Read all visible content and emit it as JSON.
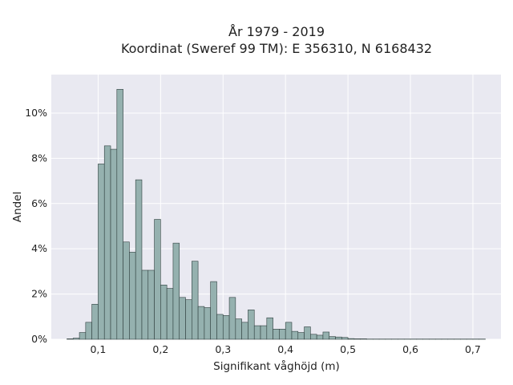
{
  "chart_data": {
    "type": "bar",
    "title_line1": "År 1979 - 2019",
    "title_line2": "Koordinat (Sweref 99 TM): E 356310, N 6168432",
    "xlabel": "Signifikant våghöjd (m)",
    "ylabel": "Andel",
    "xlim": [
      0.025,
      0.745
    ],
    "ylim": [
      0,
      11.7
    ],
    "grid": true,
    "bar_color": "#95b1af",
    "bar_edge_color": "#2f3f3e",
    "plot_background": "#e9e9f1",
    "x_ticks": [
      {
        "value": 0.1,
        "label": "0,1"
      },
      {
        "value": 0.2,
        "label": "0,2"
      },
      {
        "value": 0.3,
        "label": "0,3"
      },
      {
        "value": 0.4,
        "label": "0,4"
      },
      {
        "value": 0.5,
        "label": "0,5"
      },
      {
        "value": 0.6,
        "label": "0,6"
      },
      {
        "value": 0.7,
        "label": "0,7"
      }
    ],
    "y_ticks": [
      {
        "value": 0,
        "label": "0%"
      },
      {
        "value": 2,
        "label": "2%"
      },
      {
        "value": 4,
        "label": "4%"
      },
      {
        "value": 6,
        "label": "6%"
      },
      {
        "value": 8,
        "label": "8%"
      },
      {
        "value": 10,
        "label": "10%"
      }
    ],
    "bin_start": 0.05,
    "bin_width": 0.01,
    "values_percent": [
      0.02,
      0.05,
      0.3,
      0.75,
      1.55,
      7.75,
      8.55,
      8.4,
      11.05,
      4.3,
      3.85,
      7.05,
      3.05,
      3.05,
      5.3,
      2.4,
      2.25,
      4.25,
      1.85,
      1.75,
      3.45,
      1.45,
      1.4,
      2.55,
      1.1,
      1.05,
      1.85,
      0.9,
      0.75,
      1.3,
      0.6,
      0.6,
      0.95,
      0.45,
      0.45,
      0.75,
      0.35,
      0.3,
      0.55,
      0.22,
      0.18,
      0.32,
      0.12,
      0.1,
      0.08,
      0.03,
      0.02,
      0.02,
      0.01,
      0.01,
      0.01,
      0.01,
      0.01,
      0.01,
      0.01,
      0.01,
      0.01,
      0.01,
      0.01,
      0.01,
      0.01,
      0.01,
      0.01,
      0.01,
      0.01,
      0.01,
      0.01
    ]
  }
}
